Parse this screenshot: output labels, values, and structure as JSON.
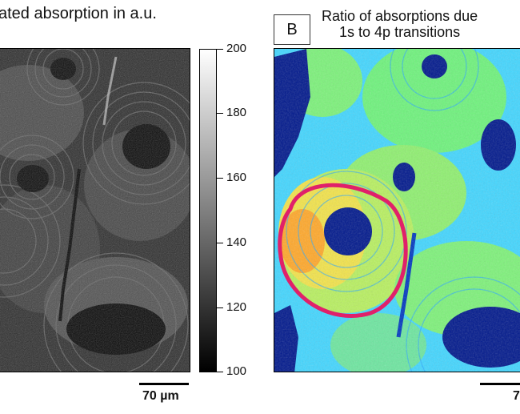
{
  "panel_a": {
    "title": "ated absorption in a.u.",
    "colorbar": {
      "ticks": [
        "200",
        "180",
        "160",
        "140",
        "120",
        "100"
      ],
      "range": [
        100,
        200
      ],
      "colors": [
        "#ffffff",
        "#000000"
      ]
    },
    "scalebar_label": "70 µm"
  },
  "panel_b": {
    "label": "B",
    "title_line1": "Ratio of absorptions due",
    "title_line2": "1s to 4p transitions",
    "scalebar_label": "7",
    "highlight_color": "#e0206a"
  }
}
